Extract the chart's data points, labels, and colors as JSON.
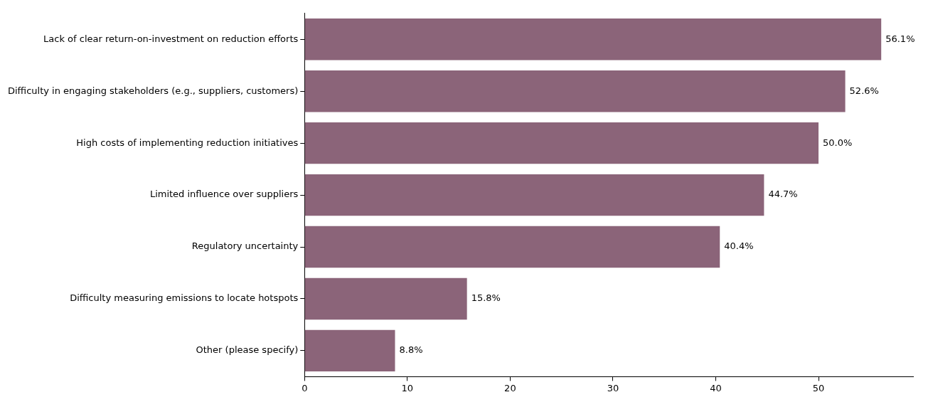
{
  "chart_data": {
    "type": "bar",
    "orientation": "horizontal",
    "categories": [
      "Lack of clear return-on-investment on reduction efforts",
      "Difficulty in engaging stakeholders (e.g., suppliers, customers)",
      "High costs of implementing reduction initiatives",
      "Limited influence over suppliers",
      "Regulatory uncertainty",
      "Difficulty measuring emissions to locate hotspots",
      "Other (please specify)"
    ],
    "values": [
      56.1,
      52.6,
      50.0,
      44.7,
      40.4,
      15.8,
      8.8
    ],
    "value_labels": [
      "56.1%",
      "52.6%",
      "50.0%",
      "44.7%",
      "40.4%",
      "15.8%",
      "8.8%"
    ],
    "color": "#8b6479",
    "xlim": [
      0,
      59.2
    ],
    "xticks": [
      0,
      10,
      20,
      30,
      40,
      50
    ],
    "grid": false,
    "legend": false
  }
}
